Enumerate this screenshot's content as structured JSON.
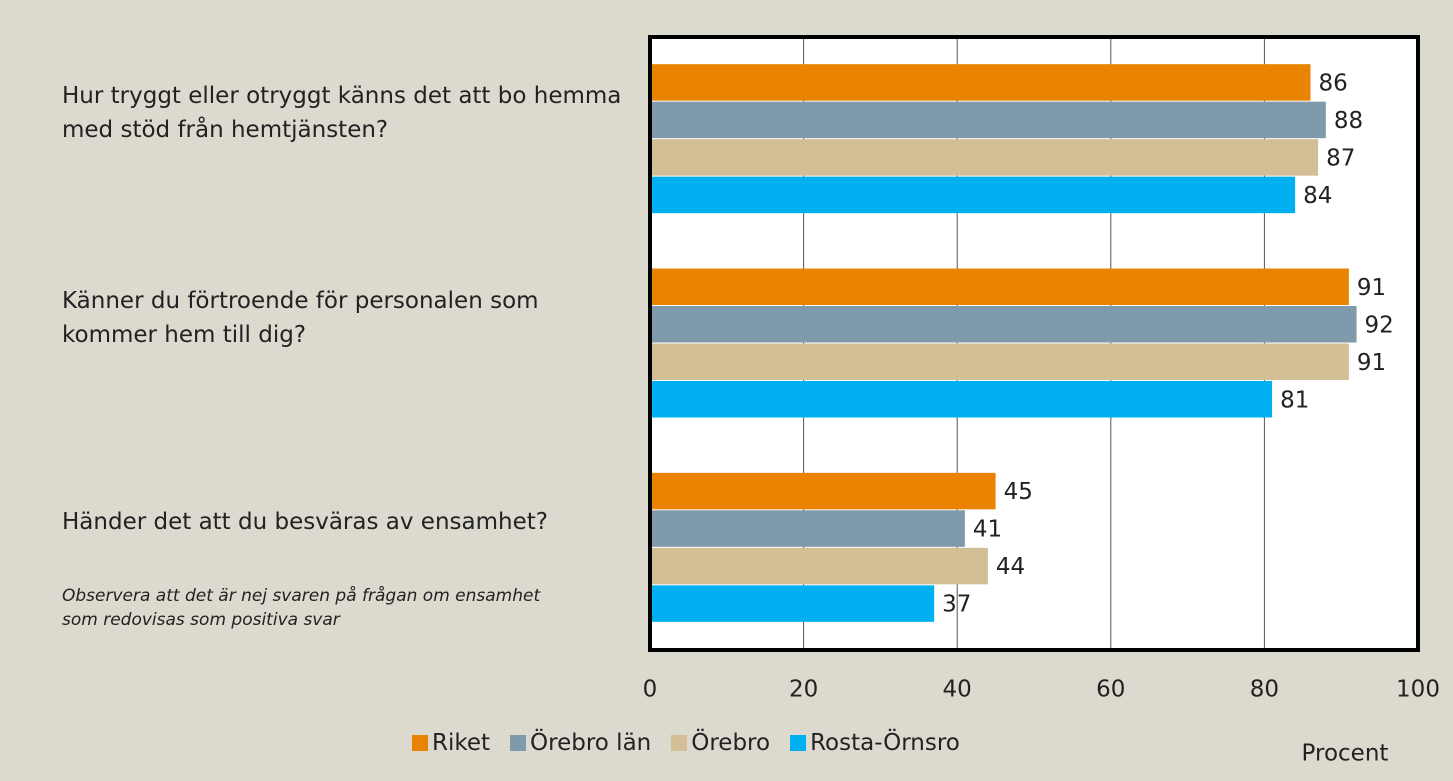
{
  "chart_data": {
    "type": "barh",
    "categories": [
      "Hur tryggt eller otryggt känns det att bo hemma med stöd från hemtjänsten?",
      "Känner du förtroende för personalen som kommer hem till dig?",
      "Händer det att du besväras av ensamhet?"
    ],
    "series": [
      {
        "name": "Riket",
        "color": "#e98300",
        "values": [
          86,
          91,
          45
        ]
      },
      {
        "name": "Örebro län",
        "color": "#7f9bab",
        "values": [
          88,
          92,
          41
        ]
      },
      {
        "name": "Örebro",
        "color": "#d3bf96",
        "values": [
          87,
          91,
          44
        ]
      },
      {
        "name": "Rosta-Örnsro",
        "color": "#00b0f0",
        "values": [
          84,
          81,
          37
        ]
      }
    ],
    "xlim": [
      0,
      100
    ],
    "xticks": [
      0,
      20,
      40,
      60,
      80,
      100
    ],
    "grid": true,
    "xlabel": "Procent",
    "annotation": "Observera att det är nej svaren på frågan om ensamhet som redovisas som positiva svar",
    "legend": "bottom"
  }
}
